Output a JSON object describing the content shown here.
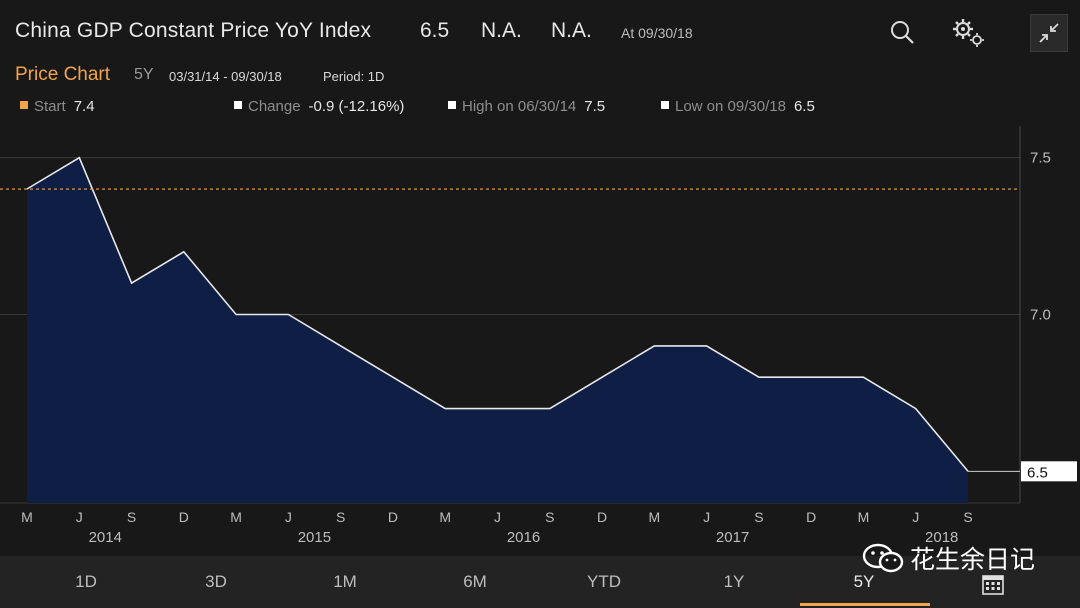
{
  "header": {
    "title": "China GDP Constant Price YoY Index",
    "last": "6.5",
    "change": "N.A.",
    "change_pct": "N.A.",
    "as_of": "At 09/30/18"
  },
  "subheader": {
    "label": "Price Chart",
    "range": "5Y",
    "dates": "03/31/14 - 09/30/18",
    "period": "Period: 1D"
  },
  "stats": {
    "start_label": "Start",
    "start_value": "7.4",
    "change_label": "Change",
    "change_value": "-0.9 (-12.16%)",
    "high_label": "High on 06/30/14",
    "high_value": "7.5",
    "low_label": "Low on 09/30/18",
    "low_value": "6.5"
  },
  "colors": {
    "accent": "#f2a44b",
    "fill": "#0f1e45",
    "line": "#e8e8e8"
  },
  "chart_data": {
    "type": "area",
    "title": "China GDP Constant Price YoY Index",
    "x": [
      "2014Q1",
      "2014Q2",
      "2014Q3",
      "2014Q4",
      "2015Q1",
      "2015Q2",
      "2015Q3",
      "2015Q4",
      "2016Q1",
      "2016Q2",
      "2016Q3",
      "2016Q4",
      "2017Q1",
      "2017Q2",
      "2017Q3",
      "2017Q4",
      "2018Q1",
      "2018Q2",
      "2018Q3"
    ],
    "values": [
      7.4,
      7.5,
      7.1,
      7.2,
      7.0,
      7.0,
      6.9,
      6.8,
      6.7,
      6.7,
      6.7,
      6.8,
      6.9,
      6.9,
      6.8,
      6.8,
      6.8,
      6.7,
      6.5
    ],
    "ylim": [
      6.45,
      7.55
    ],
    "yticks": [
      "7.5",
      "7.0"
    ],
    "last_value_label": "6.5",
    "start_reference": 7.4,
    "month_ticks": [
      "M",
      "J",
      "S",
      "D",
      "M",
      "J",
      "S",
      "D",
      "M",
      "J",
      "S",
      "D",
      "M",
      "J",
      "S",
      "D",
      "M",
      "J",
      "S"
    ],
    "year_labels": [
      "2014",
      "2015",
      "2016",
      "2017",
      "2018"
    ]
  },
  "tabs": [
    "1D",
    "3D",
    "1M",
    "6M",
    "YTD",
    "1Y",
    "5Y"
  ],
  "active_tab": "5Y",
  "watermark": "花生余日记"
}
